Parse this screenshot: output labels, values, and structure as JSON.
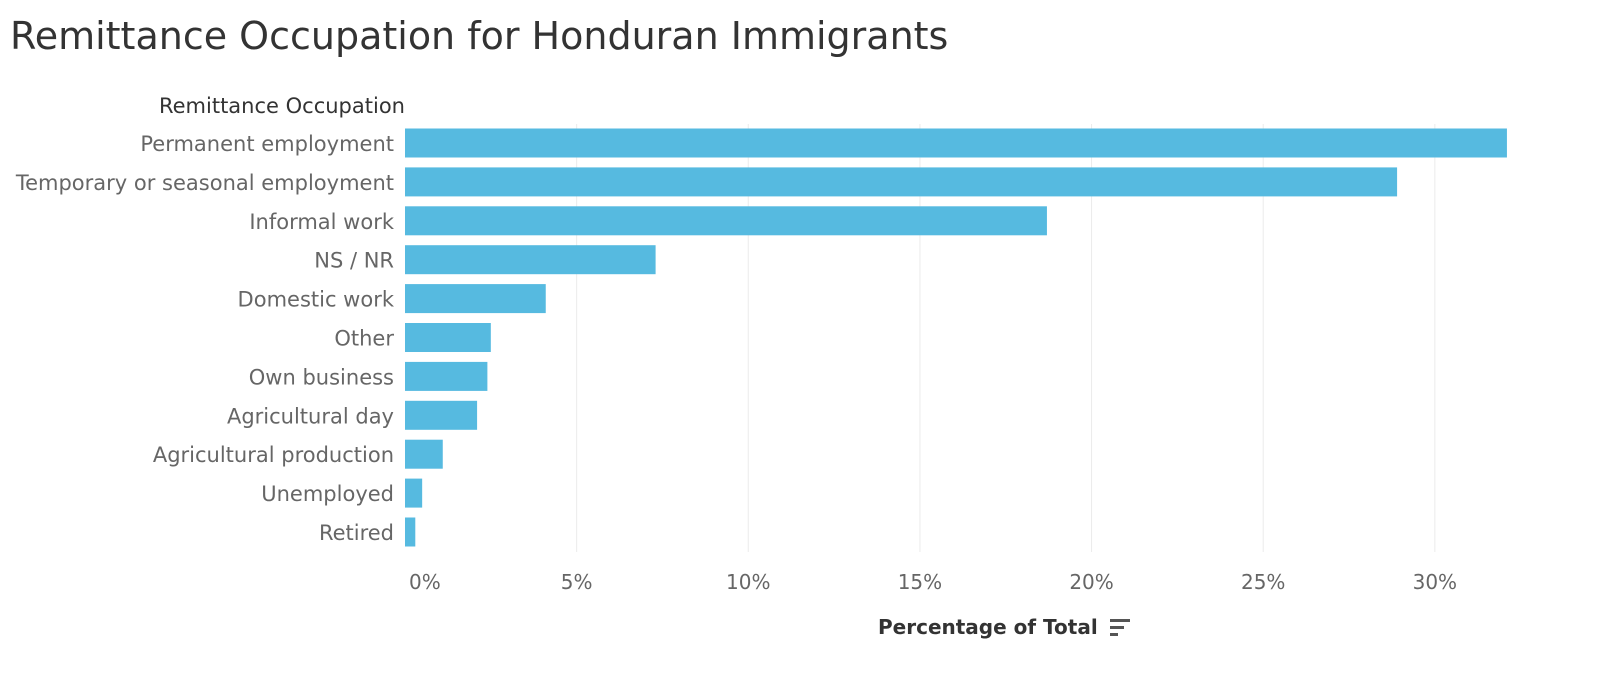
{
  "chart_data": {
    "type": "bar",
    "orientation": "horizontal",
    "title": "Remittance Occupation for Honduran Immigrants",
    "row_header": "Remittance Occupation",
    "xlabel": "Percentage of Total",
    "categories": [
      "Permanent employment",
      "Temporary or seasonal employment",
      "Informal work",
      "NS / NR",
      "Domestic work",
      "Other",
      "Own business",
      "Agricultural day",
      "Agricultural production",
      "Unemployed",
      "Retired"
    ],
    "values": [
      32.1,
      28.9,
      18.7,
      7.3,
      4.1,
      2.5,
      2.4,
      2.1,
      1.1,
      0.5,
      0.3
    ],
    "xlim": [
      0,
      33.5
    ],
    "x_ticks": [
      0,
      5,
      10,
      15,
      20,
      25,
      30
    ],
    "x_tick_labels": [
      "0%",
      "5%",
      "10%",
      "15%",
      "20%",
      "25%",
      "30%"
    ],
    "grid": true,
    "bar_color": "#56BAE0",
    "grid_color": "#EBEBEB"
  },
  "icons": {
    "sort": "sort-descending-icon"
  }
}
